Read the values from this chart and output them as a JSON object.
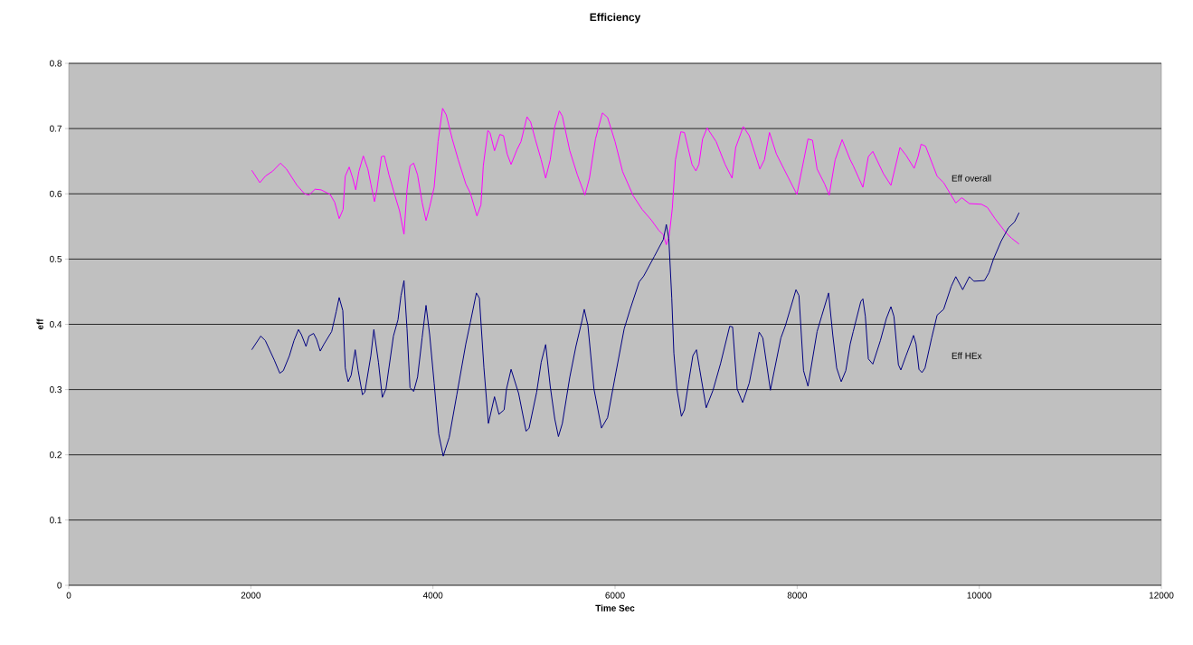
{
  "chart_data": {
    "type": "line",
    "title": "Efficiency",
    "xlabel": "Time Sec",
    "ylabel": "eff",
    "xlim": [
      0,
      12000
    ],
    "xticks": [
      0,
      2000,
      4000,
      6000,
      8000,
      10000,
      12000
    ],
    "ylim": [
      0,
      0.8
    ],
    "yticks": [
      0,
      0.1,
      0.2,
      0.3,
      0.4,
      0.5,
      0.6,
      0.7,
      0.8
    ],
    "grid": "y",
    "legend": false,
    "marker": "none",
    "line_style": "solid",
    "series": [
      {
        "name": "Eff overall",
        "color": "#ff00ff",
        "x": [
          2010,
          2099,
          2159,
          2242,
          2325,
          2391,
          2507,
          2590,
          2639,
          2705,
          2772,
          2871,
          2921,
          2970,
          3013,
          3037,
          3080,
          3119,
          3152,
          3186,
          3235,
          3285,
          3318,
          3358,
          3384,
          3434,
          3467,
          3517,
          3583,
          3633,
          3682,
          3715,
          3748,
          3788,
          3831,
          3881,
          3924,
          3964,
          4013,
          4056,
          4106,
          4146,
          4212,
          4278,
          4361,
          4411,
          4483,
          4527,
          4553,
          4603,
          4626,
          4676,
          4735,
          4775,
          4815,
          4858,
          4924,
          4967,
          5033,
          5073,
          5123,
          5189,
          5238,
          5288,
          5338,
          5388,
          5421,
          5503,
          5586,
          5669,
          5719,
          5785,
          5861,
          5918,
          6000,
          6083,
          6199,
          6298,
          6397,
          6480,
          6530,
          6563,
          6596,
          6629,
          6663,
          6722,
          6762,
          6845,
          6888,
          6921,
          6961,
          7011,
          7110,
          7209,
          7285,
          7325,
          7408,
          7474,
          7590,
          7640,
          7696,
          7772,
          7855,
          7997,
          8053,
          8119,
          8169,
          8219,
          8302,
          8352,
          8417,
          8494,
          8583,
          8616,
          8722,
          8782,
          8831,
          8947,
          9030,
          9129,
          9196,
          9285,
          9328,
          9361,
          9410,
          9537,
          9609,
          9742,
          9808,
          9891,
          10024,
          10090,
          10173,
          10289,
          10354,
          10437
        ],
        "values": [
          0.636,
          0.617,
          0.627,
          0.635,
          0.647,
          0.638,
          0.613,
          0.6,
          0.598,
          0.607,
          0.606,
          0.599,
          0.587,
          0.562,
          0.576,
          0.627,
          0.641,
          0.624,
          0.606,
          0.634,
          0.658,
          0.638,
          0.615,
          0.588,
          0.606,
          0.657,
          0.658,
          0.629,
          0.597,
          0.574,
          0.538,
          0.606,
          0.643,
          0.647,
          0.629,
          0.587,
          0.559,
          0.58,
          0.61,
          0.68,
          0.731,
          0.721,
          0.684,
          0.652,
          0.615,
          0.601,
          0.566,
          0.583,
          0.643,
          0.697,
          0.694,
          0.666,
          0.691,
          0.689,
          0.661,
          0.645,
          0.668,
          0.68,
          0.718,
          0.71,
          0.684,
          0.652,
          0.624,
          0.652,
          0.703,
          0.727,
          0.719,
          0.666,
          0.629,
          0.598,
          0.624,
          0.684,
          0.724,
          0.717,
          0.68,
          0.634,
          0.597,
          0.576,
          0.56,
          0.544,
          0.537,
          0.522,
          0.537,
          0.578,
          0.652,
          0.695,
          0.694,
          0.645,
          0.635,
          0.645,
          0.684,
          0.701,
          0.68,
          0.645,
          0.624,
          0.671,
          0.703,
          0.689,
          0.638,
          0.652,
          0.694,
          0.661,
          0.638,
          0.599,
          0.638,
          0.684,
          0.682,
          0.638,
          0.615,
          0.598,
          0.652,
          0.683,
          0.652,
          0.643,
          0.61,
          0.657,
          0.665,
          0.631,
          0.613,
          0.671,
          0.659,
          0.639,
          0.657,
          0.676,
          0.673,
          0.627,
          0.617,
          0.586,
          0.594,
          0.585,
          0.584,
          0.579,
          0.562,
          0.541,
          0.532,
          0.523
        ]
      },
      {
        "name": "Eff HEx",
        "color": "#000080",
        "x": [
          2010,
          2109,
          2159,
          2258,
          2318,
          2357,
          2424,
          2474,
          2523,
          2556,
          2606,
          2639,
          2689,
          2722,
          2762,
          2805,
          2888,
          2937,
          2970,
          3010,
          3037,
          3069,
          3102,
          3146,
          3179,
          3226,
          3252,
          3318,
          3351,
          3401,
          3444,
          3484,
          3566,
          3616,
          3649,
          3682,
          3715,
          3748,
          3788,
          3831,
          3881,
          3924,
          3964,
          4013,
          4063,
          4113,
          4179,
          4262,
          4361,
          4411,
          4477,
          4510,
          4560,
          4609,
          4676,
          4725,
          4782,
          4808,
          4858,
          4941,
          5023,
          5056,
          5139,
          5189,
          5238,
          5288,
          5338,
          5378,
          5421,
          5503,
          5570,
          5636,
          5662,
          5702,
          5768,
          5851,
          5918,
          6000,
          6100,
          6166,
          6265,
          6315,
          6431,
          6530,
          6563,
          6590,
          6623,
          6646,
          6679,
          6729,
          6762,
          6812,
          6855,
          6894,
          6927,
          7001,
          7076,
          7159,
          7259,
          7291,
          7341,
          7401,
          7474,
          7583,
          7623,
          7706,
          7821,
          7871,
          7987,
          8020,
          8070,
          8119,
          8219,
          8268,
          8345,
          8391,
          8434,
          8484,
          8534,
          8583,
          8616,
          8699,
          8722,
          8749,
          8782,
          8831,
          8914,
          8980,
          9030,
          9063,
          9112,
          9139,
          9196,
          9245,
          9278,
          9305,
          9338,
          9371,
          9404,
          9477,
          9537,
          9609,
          9692,
          9742,
          9818,
          9891,
          9941,
          10057,
          10106,
          10156,
          10239,
          10321,
          10388,
          10437
        ],
        "values": [
          0.361,
          0.382,
          0.375,
          0.345,
          0.325,
          0.329,
          0.352,
          0.375,
          0.392,
          0.384,
          0.366,
          0.382,
          0.386,
          0.377,
          0.359,
          0.37,
          0.389,
          0.419,
          0.441,
          0.421,
          0.333,
          0.312,
          0.322,
          0.361,
          0.329,
          0.292,
          0.296,
          0.352,
          0.392,
          0.342,
          0.288,
          0.301,
          0.382,
          0.407,
          0.444,
          0.467,
          0.393,
          0.303,
          0.297,
          0.319,
          0.379,
          0.429,
          0.384,
          0.31,
          0.232,
          0.198,
          0.227,
          0.292,
          0.37,
          0.403,
          0.448,
          0.44,
          0.333,
          0.248,
          0.289,
          0.262,
          0.269,
          0.301,
          0.331,
          0.294,
          0.236,
          0.241,
          0.296,
          0.342,
          0.369,
          0.305,
          0.255,
          0.228,
          0.248,
          0.319,
          0.366,
          0.405,
          0.423,
          0.398,
          0.301,
          0.241,
          0.257,
          0.319,
          0.393,
          0.423,
          0.465,
          0.474,
          0.504,
          0.53,
          0.553,
          0.532,
          0.44,
          0.356,
          0.301,
          0.259,
          0.269,
          0.315,
          0.352,
          0.361,
          0.333,
          0.272,
          0.299,
          0.34,
          0.397,
          0.396,
          0.301,
          0.28,
          0.31,
          0.388,
          0.379,
          0.299,
          0.379,
          0.398,
          0.453,
          0.444,
          0.329,
          0.305,
          0.389,
          0.412,
          0.448,
          0.384,
          0.333,
          0.312,
          0.329,
          0.37,
          0.389,
          0.435,
          0.439,
          0.412,
          0.347,
          0.339,
          0.375,
          0.409,
          0.427,
          0.412,
          0.338,
          0.33,
          0.352,
          0.37,
          0.383,
          0.37,
          0.331,
          0.326,
          0.333,
          0.379,
          0.414,
          0.423,
          0.458,
          0.473,
          0.453,
          0.473,
          0.466,
          0.467,
          0.479,
          0.5,
          0.527,
          0.548,
          0.557,
          0.571
        ]
      }
    ]
  }
}
